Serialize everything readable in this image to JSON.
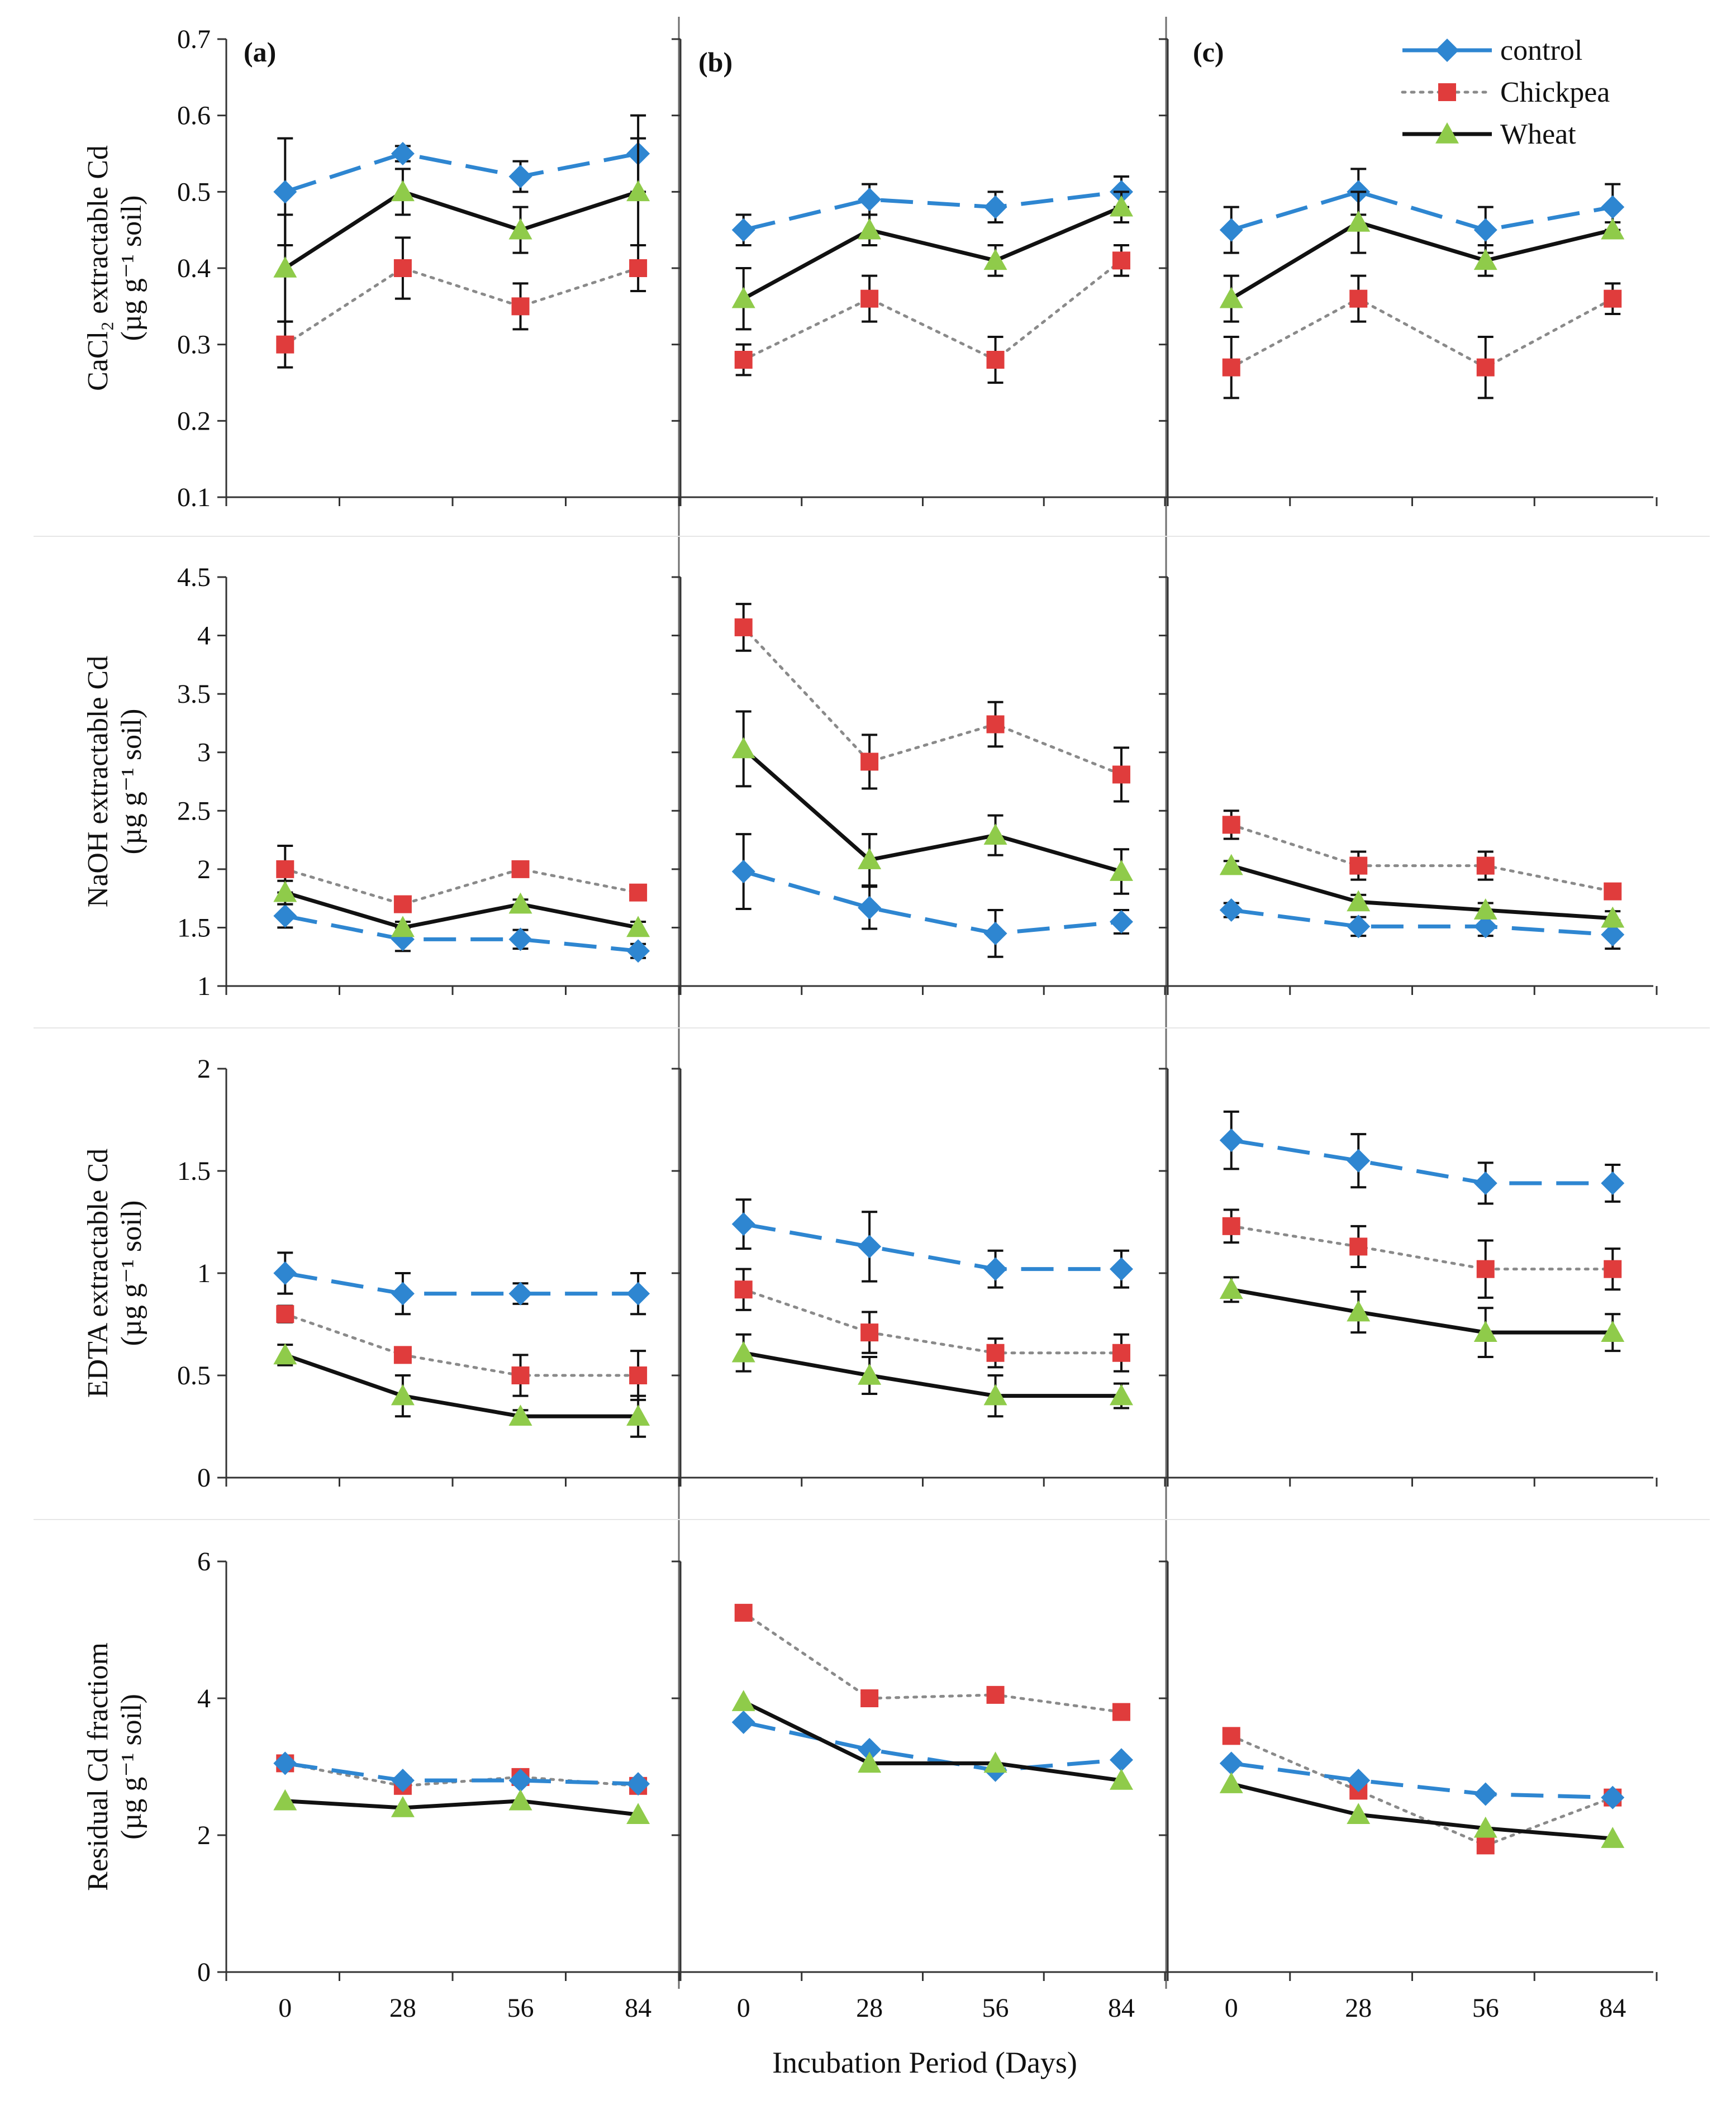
{
  "figure": {
    "xlabel": "Incubation Period (Days)",
    "panel_labels": [
      "(a)",
      "(b)",
      "(c)"
    ],
    "ylabel_units": "(µg g⁻¹ soil)",
    "row_ylabels": [
      {
        "main": "CaCl₂ extractable Cd",
        "units": "(µg g⁻¹ soil)"
      },
      {
        "main": "NaOH extractable Cd",
        "units": "(µg g⁻¹ soil)"
      },
      {
        "main": "EDTA extractable Cd",
        "units": "(µg g⁻¹ soil)"
      },
      {
        "main": "Residual Cd fractiom",
        "units": "(µg g⁻¹ soil)"
      }
    ]
  },
  "legend": [
    {
      "name": "control",
      "color": "#2E86D1",
      "marker": "diamond",
      "dash": "long-dash"
    },
    {
      "name": "Chickpea",
      "color": "#E03C3C",
      "marker": "square",
      "dash": "dotted"
    },
    {
      "name": "Wheat",
      "color": "#111111",
      "marker": "triangle",
      "marker_color": "#8FCB4A",
      "dash": "solid"
    }
  ],
  "chart_data": [
    {
      "type": "line",
      "row": 0,
      "col": 0,
      "panel": "(a)",
      "ylabel": "CaCl₂ extractable Cd (µg g⁻¹ soil)",
      "ylim": [
        0.1,
        0.7
      ],
      "yticks": [
        "0.1",
        "0.2",
        "0.3",
        "0.4",
        "0.5",
        "0.6",
        "0.7"
      ],
      "ytick_values": [
        0.1,
        0.2,
        0.3,
        0.4,
        0.5,
        0.6,
        0.7
      ],
      "x": [
        0,
        28,
        56,
        84
      ],
      "series": [
        {
          "name": "control",
          "values": [
            0.5,
            0.55,
            0.52,
            0.55
          ],
          "errors": [
            0.07,
            0.01,
            0.02,
            0.05
          ]
        },
        {
          "name": "Chickpea",
          "values": [
            0.3,
            0.4,
            0.35,
            0.4
          ],
          "errors": [
            0.03,
            0.04,
            0.03,
            0.03
          ]
        },
        {
          "name": "Wheat",
          "values": [
            0.4,
            0.5,
            0.45,
            0.5
          ],
          "errors": [
            0.07,
            0.03,
            0.03,
            0.07
          ]
        }
      ]
    },
    {
      "type": "line",
      "row": 0,
      "col": 1,
      "panel": "(b)",
      "ylim": [
        0.1,
        0.7
      ],
      "ytick_values": [
        0.1,
        0.2,
        0.3,
        0.4,
        0.5,
        0.6,
        0.7
      ],
      "x": [
        0,
        28,
        56,
        84
      ],
      "series": [
        {
          "name": "control",
          "values": [
            0.45,
            0.49,
            0.48,
            0.5
          ],
          "errors": [
            0.02,
            0.02,
            0.02,
            0.02
          ]
        },
        {
          "name": "Chickpea",
          "values": [
            0.28,
            0.36,
            0.28,
            0.41
          ],
          "errors": [
            0.02,
            0.03,
            0.03,
            0.02
          ]
        },
        {
          "name": "Wheat",
          "values": [
            0.36,
            0.45,
            0.41,
            0.48
          ],
          "errors": [
            0.04,
            0.02,
            0.02,
            0.02
          ]
        }
      ]
    },
    {
      "type": "line",
      "row": 0,
      "col": 2,
      "panel": "(c)",
      "ylim": [
        0.1,
        0.7
      ],
      "ytick_values": [
        0.1,
        0.2,
        0.3,
        0.4,
        0.5,
        0.6,
        0.7
      ],
      "x": [
        0,
        28,
        56,
        84
      ],
      "series": [
        {
          "name": "control",
          "values": [
            0.45,
            0.5,
            0.45,
            0.48
          ],
          "errors": [
            0.03,
            0.03,
            0.03,
            0.03
          ]
        },
        {
          "name": "Chickpea",
          "values": [
            0.27,
            0.36,
            0.27,
            0.36
          ],
          "errors": [
            0.04,
            0.03,
            0.04,
            0.02
          ]
        },
        {
          "name": "Wheat",
          "values": [
            0.36,
            0.46,
            0.41,
            0.45
          ],
          "errors": [
            0.03,
            0.04,
            0.02,
            0.01
          ]
        }
      ]
    },
    {
      "type": "line",
      "row": 1,
      "col": 0,
      "ylabel": "NaOH extractable Cd (µg g⁻¹ soil)",
      "ylim": [
        1,
        4.5
      ],
      "yticks": [
        "1",
        "1.5",
        "2",
        "2.5",
        "3",
        "3.5",
        "4",
        "4.5"
      ],
      "ytick_values": [
        1,
        1.5,
        2,
        2.5,
        3,
        3.5,
        4,
        4.5
      ],
      "x": [
        0,
        28,
        56,
        84
      ],
      "series": [
        {
          "name": "control",
          "values": [
            1.6,
            1.4,
            1.4,
            1.3
          ],
          "errors": [
            0.1,
            0.1,
            0.08,
            0.06
          ]
        },
        {
          "name": "Chickpea",
          "values": [
            2.0,
            1.7,
            2.0,
            1.8
          ],
          "errors": [
            0.2,
            0.04,
            0.05,
            0.05
          ]
        },
        {
          "name": "Wheat",
          "values": [
            1.8,
            1.5,
            1.7,
            1.5
          ],
          "errors": [
            0.1,
            0.05,
            0.04,
            0.05
          ]
        }
      ]
    },
    {
      "type": "line",
      "row": 1,
      "col": 1,
      "ylim": [
        1,
        4.5
      ],
      "ytick_values": [
        1,
        1.5,
        2,
        2.5,
        3,
        3.5,
        4,
        4.5
      ],
      "x": [
        0,
        28,
        56,
        84
      ],
      "series": [
        {
          "name": "control",
          "values": [
            1.98,
            1.67,
            1.45,
            1.55
          ],
          "errors": [
            0.32,
            0.18,
            0.2,
            0.1
          ]
        },
        {
          "name": "Chickpea",
          "values": [
            4.07,
            2.92,
            3.24,
            2.81
          ],
          "errors": [
            0.2,
            0.23,
            0.19,
            0.23
          ]
        },
        {
          "name": "Wheat",
          "values": [
            3.03,
            2.08,
            2.29,
            1.98
          ],
          "errors": [
            0.32,
            0.22,
            0.17,
            0.19
          ]
        }
      ]
    },
    {
      "type": "line",
      "row": 1,
      "col": 2,
      "ylim": [
        1,
        4.5
      ],
      "ytick_values": [
        1,
        1.5,
        2,
        2.5,
        3,
        3.5,
        4,
        4.5
      ],
      "x": [
        0,
        28,
        56,
        84
      ],
      "series": [
        {
          "name": "control",
          "values": [
            1.65,
            1.51,
            1.51,
            1.44
          ],
          "errors": [
            0.06,
            0.08,
            0.08,
            0.12
          ]
        },
        {
          "name": "Chickpea",
          "values": [
            2.38,
            2.03,
            2.03,
            1.81
          ],
          "errors": [
            0.12,
            0.12,
            0.12,
            0.06
          ]
        },
        {
          "name": "Wheat",
          "values": [
            2.03,
            1.72,
            1.65,
            1.58
          ],
          "errors": [
            0.04,
            0.06,
            0.06,
            0.06
          ]
        }
      ]
    },
    {
      "type": "line",
      "row": 2,
      "col": 0,
      "ylabel": "EDTA extractable Cd (µg g⁻¹ soil)",
      "ylim": [
        0,
        2
      ],
      "yticks": [
        "0",
        "0.5",
        "1",
        "1.5",
        "2"
      ],
      "ytick_values": [
        0,
        0.5,
        1,
        1.5,
        2
      ],
      "x": [
        0,
        28,
        56,
        84
      ],
      "series": [
        {
          "name": "control",
          "values": [
            1.0,
            0.9,
            0.9,
            0.9
          ],
          "errors": [
            0.1,
            0.1,
            0.05,
            0.1
          ]
        },
        {
          "name": "Chickpea",
          "values": [
            0.8,
            0.6,
            0.5,
            0.5
          ],
          "errors": [
            0.04,
            0.03,
            0.1,
            0.12
          ]
        },
        {
          "name": "Wheat",
          "values": [
            0.6,
            0.4,
            0.3,
            0.3
          ],
          "errors": [
            0.05,
            0.1,
            0.03,
            0.1
          ]
        }
      ]
    },
    {
      "type": "line",
      "row": 2,
      "col": 1,
      "ylim": [
        0,
        2
      ],
      "ytick_values": [
        0,
        0.5,
        1,
        1.5,
        2
      ],
      "x": [
        0,
        28,
        56,
        84
      ],
      "series": [
        {
          "name": "control",
          "values": [
            1.24,
            1.13,
            1.02,
            1.02
          ],
          "errors": [
            0.12,
            0.17,
            0.09,
            0.09
          ]
        },
        {
          "name": "Chickpea",
          "values": [
            0.92,
            0.71,
            0.61,
            0.61
          ],
          "errors": [
            0.1,
            0.1,
            0.07,
            0.09
          ]
        },
        {
          "name": "Wheat",
          "values": [
            0.61,
            0.5,
            0.4,
            0.4
          ],
          "errors": [
            0.09,
            0.09,
            0.1,
            0.06
          ]
        }
      ]
    },
    {
      "type": "line",
      "row": 2,
      "col": 2,
      "ylim": [
        0,
        2
      ],
      "ytick_values": [
        0,
        0.5,
        1,
        1.5,
        2
      ],
      "x": [
        0,
        28,
        56,
        84
      ],
      "series": [
        {
          "name": "control",
          "values": [
            1.65,
            1.55,
            1.44,
            1.44
          ],
          "errors": [
            0.14,
            0.13,
            0.1,
            0.09
          ]
        },
        {
          "name": "Chickpea",
          "values": [
            1.23,
            1.13,
            1.02,
            1.02
          ],
          "errors": [
            0.08,
            0.1,
            0.14,
            0.1
          ]
        },
        {
          "name": "Wheat",
          "values": [
            0.92,
            0.81,
            0.71,
            0.71
          ],
          "errors": [
            0.06,
            0.1,
            0.12,
            0.09
          ]
        }
      ]
    },
    {
      "type": "line",
      "row": 3,
      "col": 0,
      "ylabel": "Residual Cd fractiom (µg g⁻¹ soil)",
      "ylim": [
        0,
        6
      ],
      "yticks": [
        "0",
        "2",
        "4",
        "6"
      ],
      "ytick_values": [
        0,
        2,
        4,
        6
      ],
      "x": [
        0,
        28,
        56,
        84
      ],
      "series": [
        {
          "name": "control",
          "values": [
            3.05,
            2.8,
            2.8,
            2.75
          ]
        },
        {
          "name": "Chickpea",
          "values": [
            3.05,
            2.72,
            2.85,
            2.72
          ]
        },
        {
          "name": "Wheat",
          "values": [
            2.5,
            2.4,
            2.5,
            2.3
          ]
        }
      ]
    },
    {
      "type": "line",
      "row": 3,
      "col": 1,
      "ylim": [
        0,
        6
      ],
      "ytick_values": [
        0,
        2,
        4,
        6
      ],
      "x": [
        0,
        28,
        56,
        84
      ],
      "series": [
        {
          "name": "control",
          "values": [
            3.65,
            3.25,
            2.95,
            3.1
          ]
        },
        {
          "name": "Chickpea",
          "values": [
            5.25,
            4.0,
            4.05,
            3.8
          ]
        },
        {
          "name": "Wheat",
          "values": [
            3.95,
            3.05,
            3.05,
            2.8
          ]
        }
      ]
    },
    {
      "type": "line",
      "row": 3,
      "col": 2,
      "ylim": [
        0,
        6
      ],
      "ytick_values": [
        0,
        2,
        4,
        6
      ],
      "x": [
        0,
        28,
        56,
        84
      ],
      "series": [
        {
          "name": "control",
          "values": [
            3.05,
            2.8,
            2.6,
            2.55
          ]
        },
        {
          "name": "Chickpea",
          "values": [
            3.45,
            2.65,
            1.85,
            2.55
          ]
        },
        {
          "name": "Wheat",
          "values": [
            2.75,
            2.3,
            2.1,
            1.95
          ]
        }
      ]
    }
  ]
}
